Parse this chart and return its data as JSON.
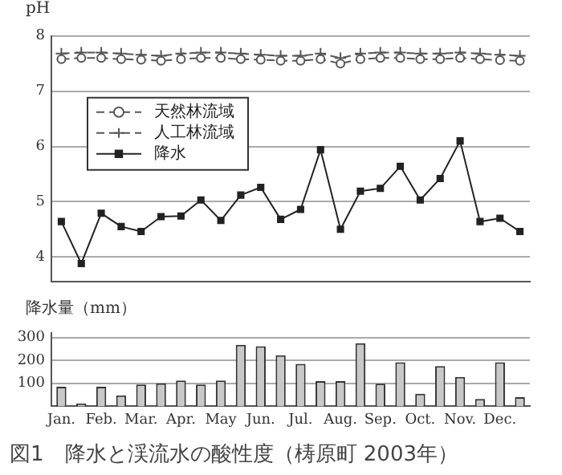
{
  "chart_data": [
    {
      "type": "line",
      "ylabel": "pH",
      "categories": [
        null,
        null,
        null,
        null,
        null,
        null,
        null,
        null,
        null,
        null,
        null,
        null,
        null,
        null,
        null,
        null,
        null,
        null,
        null,
        null,
        null,
        null,
        null,
        null
      ],
      "series": [
        {
          "name": "天然林流域",
          "color": "#555555",
          "marker": "circle",
          "line_style": "dashed",
          "values": [
            7.58,
            7.6,
            7.6,
            7.58,
            7.57,
            7.55,
            7.58,
            7.6,
            7.6,
            7.58,
            7.57,
            7.55,
            7.55,
            7.58,
            7.5,
            7.58,
            7.6,
            7.6,
            7.58,
            7.58,
            7.6,
            7.58,
            7.56,
            7.55
          ]
        },
        {
          "name": "人工林流域",
          "color": "#555555",
          "marker": "cross",
          "line_style": "dashed",
          "values": [
            7.68,
            7.7,
            7.7,
            7.68,
            7.66,
            7.64,
            7.68,
            7.7,
            7.7,
            7.68,
            7.66,
            7.64,
            7.64,
            7.68,
            7.6,
            7.68,
            7.7,
            7.7,
            7.68,
            7.68,
            7.7,
            7.68,
            7.66,
            7.64
          ]
        },
        {
          "name": "降水",
          "color": "#222222",
          "marker": "square",
          "line_style": "solid",
          "values": [
            4.64,
            3.88,
            4.79,
            4.55,
            4.46,
            4.73,
            4.74,
            5.03,
            4.66,
            5.12,
            5.26,
            4.68,
            4.86,
            5.94,
            4.5,
            5.19,
            5.24,
            5.64,
            5.03,
            5.42,
            6.1,
            4.64,
            4.7,
            4.46
          ]
        }
      ],
      "ylim": [
        3.55,
        8
      ],
      "yticks": [
        4,
        5,
        6,
        7,
        8
      ],
      "grid": "y",
      "legend": "top left",
      "tick_labels": "y"
    },
    {
      "type": "bar",
      "ylabel": "降水量（mm）",
      "categories": [
        "Jan.",
        null,
        "Feb.",
        null,
        "Mar.",
        null,
        "Apr.",
        null,
        "May",
        null,
        "Jun.",
        null,
        "Jul.",
        null,
        "Aug.",
        null,
        "Sep.",
        null,
        "Oct.",
        null,
        "Nov.",
        null,
        "Dec.",
        null
      ],
      "color": "#c8c8c8",
      "values": [
        85,
        12,
        85,
        48,
        95,
        100,
        112,
        95,
        112,
        268,
        262,
        222,
        185,
        110,
        110,
        275,
        98,
        192,
        55,
        175,
        128,
        32,
        192,
        40
      ],
      "ylim": [
        0,
        320
      ],
      "yticks": [
        100,
        200,
        300
      ],
      "grid": "y",
      "annotations": [
        "図1　降水と渓流水の酸性度（梼原町 2003年）"
      ]
    }
  ]
}
